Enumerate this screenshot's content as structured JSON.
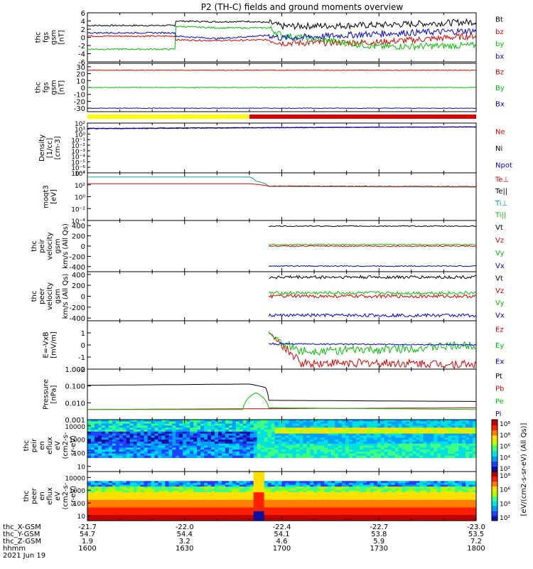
{
  "title": "P2 (TH-C) fields and ground moments overview",
  "chart_data": [
    {
      "type": "line",
      "ylabel": [
        "thc",
        "fgs",
        "gsm",
        "[nT]"
      ],
      "ylim": [
        -6,
        6
      ],
      "yticks": [
        6,
        4,
        2,
        0,
        -2,
        -4,
        -6
      ],
      "legend": [
        "Bt",
        "bz",
        "by",
        "bx"
      ],
      "legend_colors": [
        "#000000",
        "#e00000",
        "#00c000",
        "#0000e0"
      ],
      "series": [
        {
          "name": "Bt",
          "x": [
            1600,
            1627,
            1627.1,
            1640,
            1650,
            1656,
            1700,
            1730,
            1800
          ],
          "y": [
            2.9,
            2.9,
            4.0,
            3.8,
            3.9,
            3.6,
            2.7,
            3.0,
            3.8
          ]
        },
        {
          "name": "bz",
          "x": [
            1600,
            1627,
            1627.1,
            1640,
            1656,
            1700,
            1730,
            1800
          ],
          "y": [
            0.3,
            0.3,
            -0.6,
            -0.8,
            -0.6,
            -1.4,
            -1.2,
            0.4
          ]
        },
        {
          "name": "by",
          "x": [
            1600,
            1627,
            1627.1,
            1640,
            1656,
            1700,
            1730,
            1800
          ],
          "y": [
            -2.9,
            -2.9,
            2.7,
            2.3,
            2.3,
            0.5,
            -2.3,
            -2.0
          ]
        },
        {
          "name": "bx",
          "x": [
            1600,
            1627,
            1627.1,
            1640,
            1656,
            1700,
            1730,
            1800
          ],
          "y": [
            1.1,
            1.1,
            0.3,
            -0.3,
            0.5,
            -0.2,
            0.9,
            1.6
          ]
        }
      ]
    },
    {
      "type": "line",
      "ylabel": [
        "thc",
        "fgs",
        "gsm",
        "[nT]"
      ],
      "ylim": [
        -35,
        35
      ],
      "yticks": [
        30,
        20,
        10,
        0,
        -10,
        -20,
        -30
      ],
      "legend": [
        "Bz",
        "By",
        "Bx"
      ],
      "legend_colors": [
        "#e00000",
        "#00c000",
        "#0000e0"
      ],
      "series": [
        {
          "name": "Bz",
          "x": [
            1600,
            1800
          ],
          "y": [
            25,
            25
          ]
        },
        {
          "name": "By",
          "x": [
            1600,
            1800
          ],
          "y": [
            0,
            0
          ]
        },
        {
          "name": "Bx",
          "x": [
            1600,
            1800
          ],
          "y": [
            -30,
            -30
          ]
        }
      ]
    },
    {
      "type": "line",
      "ylabel": [
        "Density",
        "[1/cc]",
        "[cm-3]"
      ],
      "ylim_log": [
        -7,
        2
      ],
      "yticks": [
        "10²",
        "10⁻¹",
        "10⁻⁵"
      ],
      "legend": [
        "Ne",
        "Ni",
        "Npot"
      ],
      "legend_colors": [
        "#e00000",
        "#000000",
        "#0000e0"
      ],
      "series": [
        {
          "name": "Ne",
          "x": [
            1600,
            1800
          ],
          "y": [
            10,
            20
          ]
        },
        {
          "name": "Ni",
          "x": [
            1600,
            1800
          ],
          "y": [
            10,
            20
          ]
        },
        {
          "name": "Npot",
          "x": [
            1600,
            1800
          ],
          "y": [
            10,
            20
          ]
        }
      ]
    },
    {
      "type": "line",
      "ylabel": [
        "moqt3",
        "[eV]"
      ],
      "ylim_log": [
        -4,
        4
      ],
      "yticks": [
        "10⁴",
        "10²",
        "10⁰",
        "10⁻²",
        "10⁻⁴"
      ],
      "legend": [
        "Te⊥",
        "Te||",
        "Ti⊥",
        "Ti||"
      ],
      "legend_colors": [
        "#e00000",
        "#000000",
        "#00a0a0",
        "#00c000"
      ],
      "series": [
        {
          "name": "Ti",
          "x": [
            1600,
            1650,
            1652,
            1656,
            1800
          ],
          "y": [
            2000,
            2000,
            400,
            50,
            40
          ]
        },
        {
          "name": "Te",
          "x": [
            1600,
            1650,
            1656,
            1800
          ],
          "y": [
            150,
            150,
            60,
            50
          ]
        }
      ]
    },
    {
      "type": "line",
      "ylabel": [
        "thc",
        "peir",
        "velocity",
        "gsm",
        "km/s (All Qs)"
      ],
      "ylim": [
        -500,
        500
      ],
      "yticks": [
        400,
        200,
        0,
        -200,
        -400
      ],
      "legend": [
        "Vt",
        "Vz",
        "Vy",
        "Vx"
      ],
      "legend_colors": [
        "#000000",
        "#e00000",
        "#00c000",
        "#0000e0"
      ],
      "series": [
        {
          "name": "Vt",
          "x": [
            1656,
            1800
          ],
          "y": [
            390,
            390
          ]
        },
        {
          "name": "Vz",
          "x": [
            1656,
            1800
          ],
          "y": [
            0,
            0
          ]
        },
        {
          "name": "Vy",
          "x": [
            1656,
            1800
          ],
          "y": [
            30,
            30
          ]
        },
        {
          "name": "Vx",
          "x": [
            1656,
            1800
          ],
          "y": [
            -390,
            -390
          ]
        }
      ]
    },
    {
      "type": "line",
      "ylabel": [
        "thc",
        "peer",
        "velocity",
        "gsm",
        "km/s (All Qs)"
      ],
      "ylim": [
        -450,
        450
      ],
      "yticks": [
        400,
        200,
        0,
        -200,
        -400
      ],
      "legend": [
        "Vt",
        "Vz",
        "Vy",
        "Vx"
      ],
      "legend_colors": [
        "#000000",
        "#e00000",
        "#00c000",
        "#0000e0"
      ],
      "series": [
        {
          "name": "Vt",
          "x": [
            1656,
            1800
          ],
          "y": [
            350,
            350
          ]
        },
        {
          "name": "Vz",
          "x": [
            1656,
            1800
          ],
          "y": [
            0,
            0
          ]
        },
        {
          "name": "Vy",
          "x": [
            1656,
            1800
          ],
          "y": [
            60,
            60
          ]
        },
        {
          "name": "Vx",
          "x": [
            1656,
            1800
          ],
          "y": [
            -350,
            -350
          ]
        }
      ]
    },
    {
      "type": "line",
      "ylabel": [
        "E=-VxB",
        "[mV/m]"
      ],
      "ylim": [
        -2,
        2
      ],
      "yticks": [
        1,
        0,
        -1,
        -2
      ],
      "legend": [
        "Ez",
        "Ey",
        "Ex"
      ],
      "legend_colors": [
        "#e00000",
        "#00c000",
        "#0000e0"
      ],
      "series": [
        {
          "name": "Ez",
          "x": [
            1656,
            1700,
            1706,
            1730,
            1800
          ],
          "y": [
            1.0,
            0.0,
            -1.5,
            -1.5,
            -1.6
          ]
        },
        {
          "name": "Ey",
          "x": [
            1656,
            1700,
            1706,
            1730,
            1800
          ],
          "y": [
            1.0,
            0.2,
            -0.5,
            -0.4,
            0.0
          ]
        },
        {
          "name": "Ex",
          "x": [
            1656,
            1800
          ],
          "y": [
            0.1,
            0.0
          ]
        }
      ]
    },
    {
      "type": "line",
      "ylabel": [
        "Pressure",
        "[nPa]"
      ],
      "ylim_log": [
        -3,
        0
      ],
      "yticks": [
        "1.000",
        "0.100",
        "0.010",
        "0.001"
      ],
      "legend": [
        "Pt",
        "Pb",
        "Pe",
        "Pi"
      ],
      "legend_colors": [
        "#000000",
        "#e00000",
        "#00c000",
        "#0000e0"
      ],
      "series": [
        {
          "name": "Pt",
          "x": [
            1600,
            1625,
            1650,
            1655,
            1656,
            1800
          ],
          "y": [
            0.11,
            0.12,
            0.13,
            0.08,
            0.014,
            0.012
          ]
        },
        {
          "name": "Pb",
          "x": [
            1600,
            1800
          ],
          "y": [
            0.004,
            0.005
          ]
        },
        {
          "name": "Pe",
          "x": [
            1600,
            1648,
            1652,
            1656,
            1800
          ],
          "y": [
            0.004,
            0.004,
            0.04,
            0.005,
            0.004
          ]
        }
      ]
    },
    {
      "type": "heatmap",
      "ylabel": [
        "thc",
        "peir",
        "en",
        "eflux",
        "eV",
        "(cm2-s-",
        "sr-eV)"
      ],
      "yticks": [
        "10000",
        "1000",
        "100",
        "10"
      ],
      "colorbar_label": "[eV/(cm2-s-sr-eV) (All Qs)]",
      "colorbar_ticks": [
        "10⁸",
        "10⁸",
        "10⁶",
        "10⁴",
        "10²"
      ]
    },
    {
      "type": "heatmap",
      "ylabel": [
        "thc",
        "peer",
        "en",
        "eflux",
        "eV",
        "(cm2-s-",
        "sr-eV)"
      ],
      "yticks": [
        "10000",
        "1000",
        "100",
        "10"
      ],
      "colorbar_label": "[eV/(cm2-s-sr-eV) (All Qs)]",
      "colorbar_ticks": [
        "10⁸",
        "10⁶",
        "10⁴",
        "10²"
      ]
    }
  ],
  "x_axis": {
    "rows": [
      {
        "label": "thc_X-GSM",
        "values": [
          "-21.7",
          "-22.0",
          "-22.4",
          "-22.7",
          "-23.0"
        ]
      },
      {
        "label": "thc_Y-GSM",
        "values": [
          "54.7",
          "54.4",
          "54.1",
          "53.8",
          "53.5"
        ]
      },
      {
        "label": "thc_Z-GSM",
        "values": [
          "1.9",
          "3.2",
          "4.6",
          "5.9",
          "7.2"
        ]
      },
      {
        "label": "hhmm",
        "values": [
          "1600",
          "1630",
          "1700",
          "1730",
          "1800"
        ]
      }
    ],
    "date": "2021 Jun 19"
  },
  "colors": {
    "yellow_bar": "#ffff00",
    "red_bar": "#e00000"
  }
}
